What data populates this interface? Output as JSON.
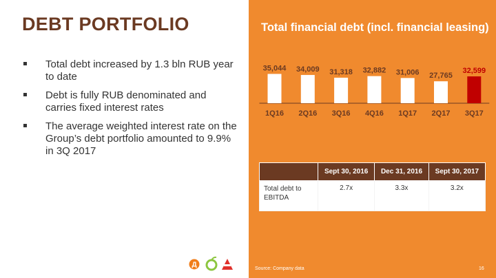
{
  "slide": {
    "title": "DEBT PORTFOLIO",
    "bullets": [
      "Total debt increased by 1.3 bln RUB year to date",
      "Debt is fully RUB denominated and carries fixed interest rates",
      "The average weighted interest rate on the Group’s debt portfolio amounted to 9.9% in 3Q 2017"
    ],
    "source": "Source: Company data",
    "page_number": "16"
  },
  "chart_data": {
    "type": "bar",
    "title": "Total financial debt (incl. financial leasing)",
    "categories": [
      "1Q16",
      "2Q16",
      "3Q16",
      "4Q16",
      "1Q17",
      "2Q17",
      "3Q17"
    ],
    "values": [
      35044,
      34009,
      31318,
      32882,
      31006,
      27765,
      32599
    ],
    "value_labels": [
      "35,044",
      "34,009",
      "31,318",
      "32,882",
      "31,006",
      "27,765",
      "32,599"
    ],
    "highlight_index": 6,
    "colors": {
      "bar": "#ffffff",
      "highlight": "#c00000",
      "label": "#6b3a22",
      "highlight_label": "#c00000",
      "axis": "#6b3a22"
    },
    "grid": false
  },
  "table": {
    "headers": [
      "",
      "Sept 30, 2016",
      "Dec 31, 2016",
      "Sept 30, 2017"
    ],
    "rows": [
      {
        "label": "Total debt to EBITDA",
        "values": [
          "2.7x",
          "3.3x",
          "3.2x"
        ]
      }
    ]
  },
  "colors": {
    "brand_brown": "#6b3a22",
    "orange_panel": "#f08a2e",
    "logo_orange": "#f07d1a",
    "logo_green": "#8cc63f",
    "logo_red": "#e0312b"
  },
  "logos": [
    "dixy-logo",
    "apple-logo",
    "megamart-logo"
  ]
}
